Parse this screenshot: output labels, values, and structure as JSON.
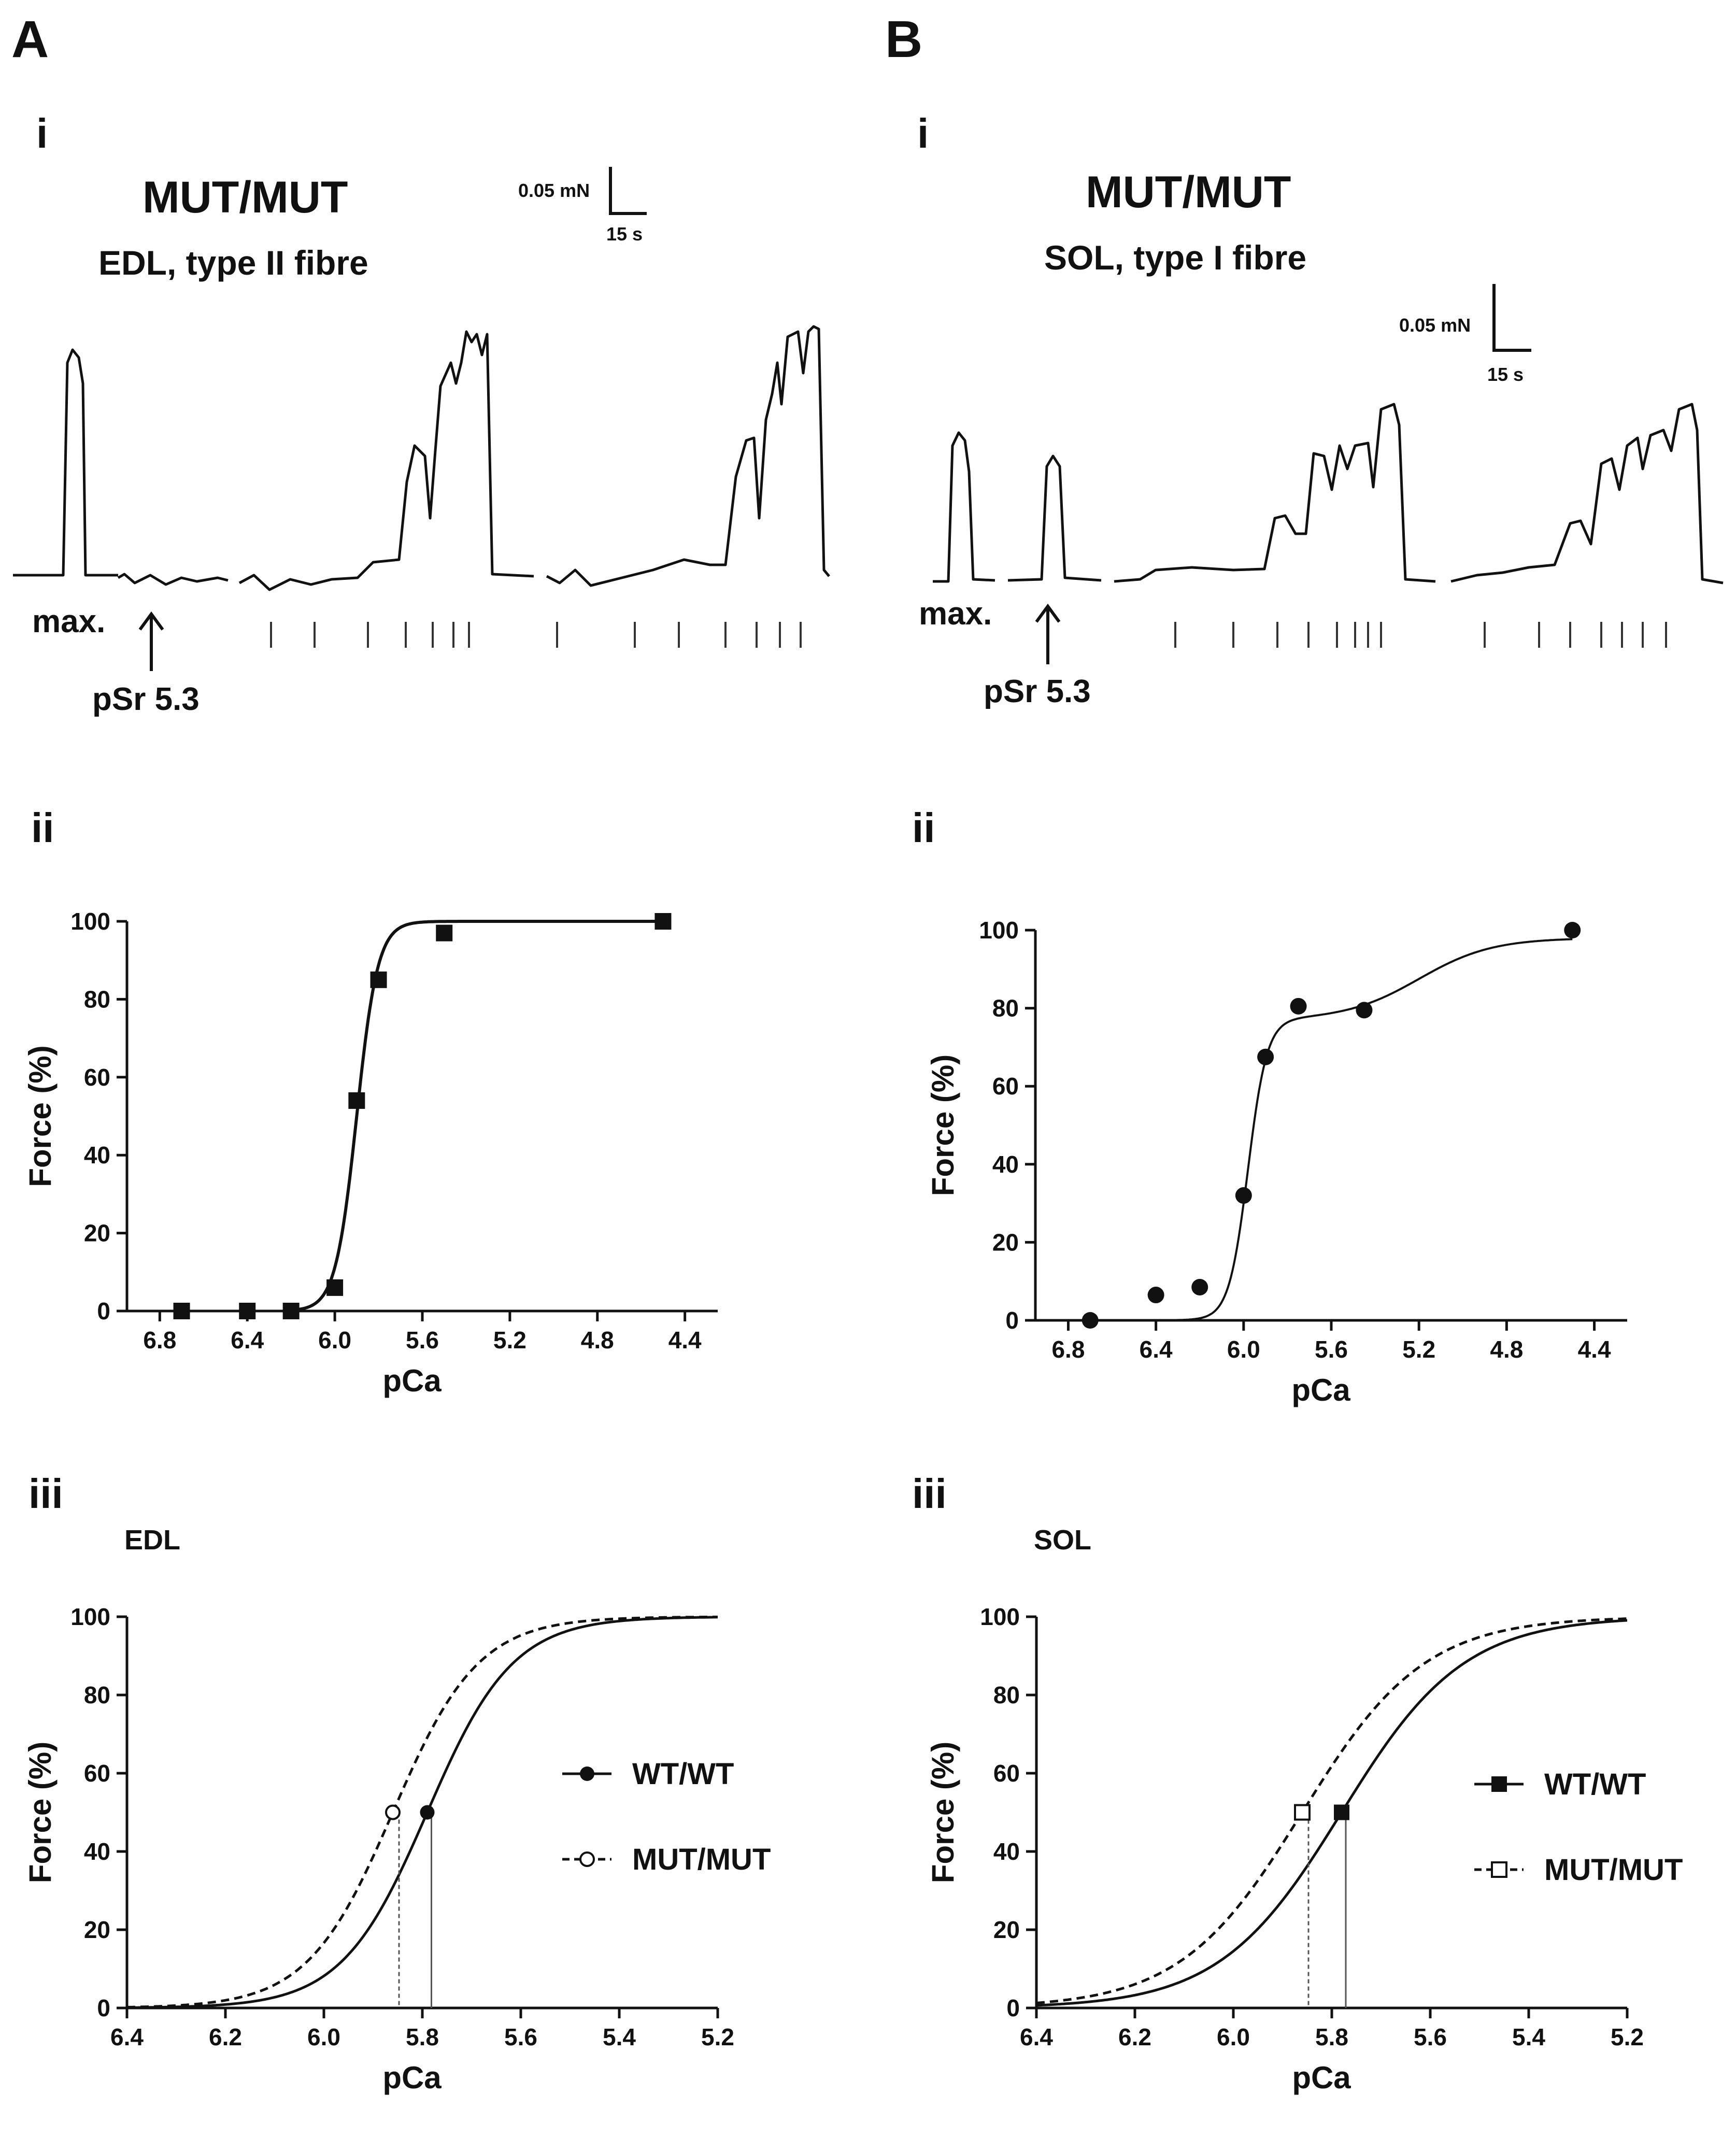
{
  "panels": {
    "A": {
      "label": "A",
      "sub_i": "i",
      "sub_ii": "ii",
      "sub_iii": "iii",
      "trace_title": "MUT/MUT",
      "trace_subtitle": "EDL, type II fibre",
      "scale_force": "0.05 mN",
      "scale_time": "15 s",
      "max_label": "max.",
      "psr_label": "pSr 5.3"
    },
    "B": {
      "label": "B",
      "sub_i": "i",
      "sub_ii": "ii",
      "sub_iii": "iii",
      "trace_title": "MUT/MUT",
      "trace_subtitle": "SOL, type I fibre",
      "scale_force": "0.05 mN",
      "scale_time": "15 s",
      "max_label": "max.",
      "psr_label": "pSr 5.3"
    }
  },
  "chart_data": [
    {
      "id": "A-ii",
      "type": "scatter",
      "title": "",
      "xlabel": "pCa",
      "ylabel": "Force (%)",
      "xlim": [
        6.95,
        4.25
      ],
      "ylim": [
        0,
        100
      ],
      "x_ticks": [
        "6.8",
        "6.4",
        "6.0",
        "5.6",
        "5.2",
        "4.8",
        "4.4"
      ],
      "y_ticks": [
        "0",
        "20",
        "40",
        "60",
        "80",
        "100"
      ],
      "marker": "square",
      "points": [
        {
          "x": 6.7,
          "y": 0
        },
        {
          "x": 6.4,
          "y": 0
        },
        {
          "x": 6.2,
          "y": 0
        },
        {
          "x": 6.0,
          "y": 6
        },
        {
          "x": 5.9,
          "y": 54
        },
        {
          "x": 5.8,
          "y": 85
        },
        {
          "x": 5.5,
          "y": 97
        },
        {
          "x": 4.5,
          "y": 100
        }
      ],
      "fit": {
        "type": "hill",
        "pCa50": 5.9,
        "nH": 9,
        "max": 100
      }
    },
    {
      "id": "B-ii",
      "type": "scatter",
      "title": "",
      "xlabel": "pCa",
      "ylabel": "Force (%)",
      "xlim": [
        6.95,
        4.25
      ],
      "ylim": [
        0,
        100
      ],
      "x_ticks": [
        "6.8",
        "6.4",
        "6.0",
        "5.6",
        "5.2",
        "4.8",
        "4.4"
      ],
      "y_ticks": [
        "0",
        "20",
        "40",
        "60",
        "80",
        "100"
      ],
      "marker": "circle",
      "points": [
        {
          "x": 6.7,
          "y": 0
        },
        {
          "x": 6.4,
          "y": 6.5
        },
        {
          "x": 6.2,
          "y": 8.5
        },
        {
          "x": 6.0,
          "y": 32
        },
        {
          "x": 5.9,
          "y": 67.5
        },
        {
          "x": 5.75,
          "y": 80.5
        },
        {
          "x": 5.45,
          "y": 79.5
        },
        {
          "x": 4.5,
          "y": 100
        }
      ],
      "fit": {
        "type": "biphasic"
      }
    },
    {
      "id": "A-iii",
      "type": "line",
      "title": "EDL",
      "xlabel": "pCa",
      "ylabel": "Force (%)",
      "xlim": [
        6.4,
        5.2
      ],
      "ylim": [
        0,
        100
      ],
      "x_ticks": [
        "6.4",
        "6.2",
        "6.0",
        "5.8",
        "5.6",
        "5.4",
        "5.2"
      ],
      "y_ticks": [
        "0",
        "20",
        "40",
        "60",
        "80",
        "100"
      ],
      "series": [
        {
          "name": "WT/WT",
          "pCa50": 5.79,
          "nH": 5.0,
          "dashed": false,
          "marker": "circle-filled",
          "marker_at": [
            5.79,
            50
          ]
        },
        {
          "name": "MUT/MUT",
          "pCa50": 5.86,
          "nH": 5.0,
          "dashed": true,
          "marker": "circle-open",
          "marker_at": [
            5.86,
            50
          ]
        }
      ],
      "legend_position": "right"
    },
    {
      "id": "B-iii",
      "type": "line",
      "title": "SOL",
      "xlabel": "pCa",
      "ylabel": "Force (%)",
      "xlim": [
        6.4,
        5.2
      ],
      "ylim": [
        0,
        100
      ],
      "x_ticks": [
        "6.4",
        "6.2",
        "6.0",
        "5.8",
        "5.6",
        "5.4",
        "5.2"
      ],
      "y_ticks": [
        "0",
        "20",
        "40",
        "60",
        "80",
        "100"
      ],
      "series": [
        {
          "name": "WT/WT",
          "pCa50": 5.78,
          "nH": 3.5,
          "dashed": false,
          "marker": "square-filled",
          "marker_at": [
            5.78,
            50
          ]
        },
        {
          "name": "MUT/MUT",
          "pCa50": 5.86,
          "nH": 3.5,
          "dashed": true,
          "marker": "square-open",
          "marker_at": [
            5.86,
            50
          ]
        }
      ],
      "legend_position": "right"
    }
  ]
}
